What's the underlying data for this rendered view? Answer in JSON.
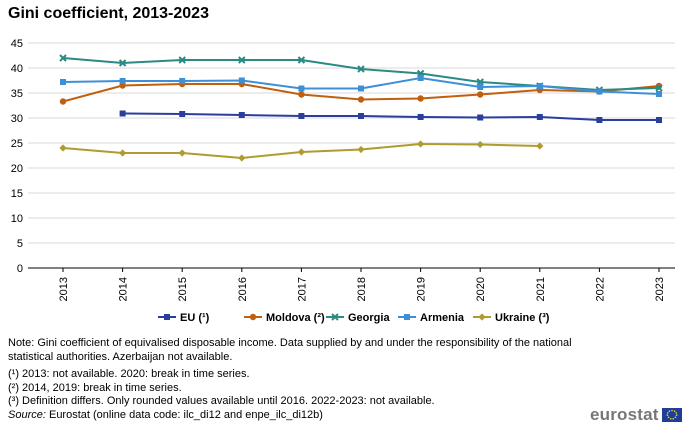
{
  "chart_data": {
    "type": "line",
    "title": "Gini coefficient, 2013-2023",
    "xlabel": "",
    "ylabel": "",
    "ylim": [
      0,
      45
    ],
    "yticks": [
      0,
      5,
      10,
      15,
      20,
      25,
      30,
      35,
      40,
      45
    ],
    "categories": [
      "2013",
      "2014",
      "2015",
      "2016",
      "2017",
      "2018",
      "2019",
      "2020",
      "2021",
      "2022",
      "2023"
    ],
    "grid": true,
    "legend_position": "bottom",
    "series": [
      {
        "name": "EU (¹)",
        "color": "#2a3f9d",
        "marker": "square",
        "values": [
          null,
          30.9,
          30.8,
          30.6,
          30.4,
          30.4,
          30.2,
          30.1,
          30.2,
          29.6,
          29.6
        ]
      },
      {
        "name": "Moldova (²)",
        "color": "#c0600f",
        "marker": "circle",
        "values": [
          33.3,
          36.5,
          36.8,
          36.8,
          34.7,
          33.7,
          33.9,
          34.7,
          35.6,
          35.3,
          36.4
        ]
      },
      {
        "name": "Georgia",
        "color": "#2a8a84",
        "marker": "x",
        "values": [
          42.0,
          41.0,
          41.6,
          41.6,
          41.6,
          39.8,
          38.9,
          37.2,
          36.4,
          35.6,
          36.0
        ]
      },
      {
        "name": "Armenia",
        "color": "#3d8fd8",
        "marker": "square",
        "values": [
          37.2,
          37.4,
          37.4,
          37.5,
          35.9,
          35.9,
          38.0,
          36.2,
          36.4,
          35.3,
          34.8
        ]
      },
      {
        "name": "Ukraine (³)",
        "color": "#b09c2e",
        "marker": "diamond",
        "values": [
          24.0,
          23.0,
          23.0,
          22.0,
          23.2,
          23.7,
          24.8,
          24.7,
          24.4,
          null,
          null
        ]
      }
    ]
  },
  "notes": {
    "main": "Note: Gini coefficient of equivalised disposable income. Data supplied by and under the responsibility of the national statistical authorities. Azerbaijan not available.",
    "fn1": "(¹) 2013: not available. 2020: break in time series.",
    "fn2": "(²) 2014, 2019: break in time series.",
    "fn3": "(³) Definition differs. Only rounded values available until 2016. 2022-2023: not available.",
    "source_label": "Source:",
    "source_text": " Eurostat (online data code: ilc_di12 and enpe_ilc_di12b)"
  },
  "logo": {
    "text": "eurostat"
  }
}
